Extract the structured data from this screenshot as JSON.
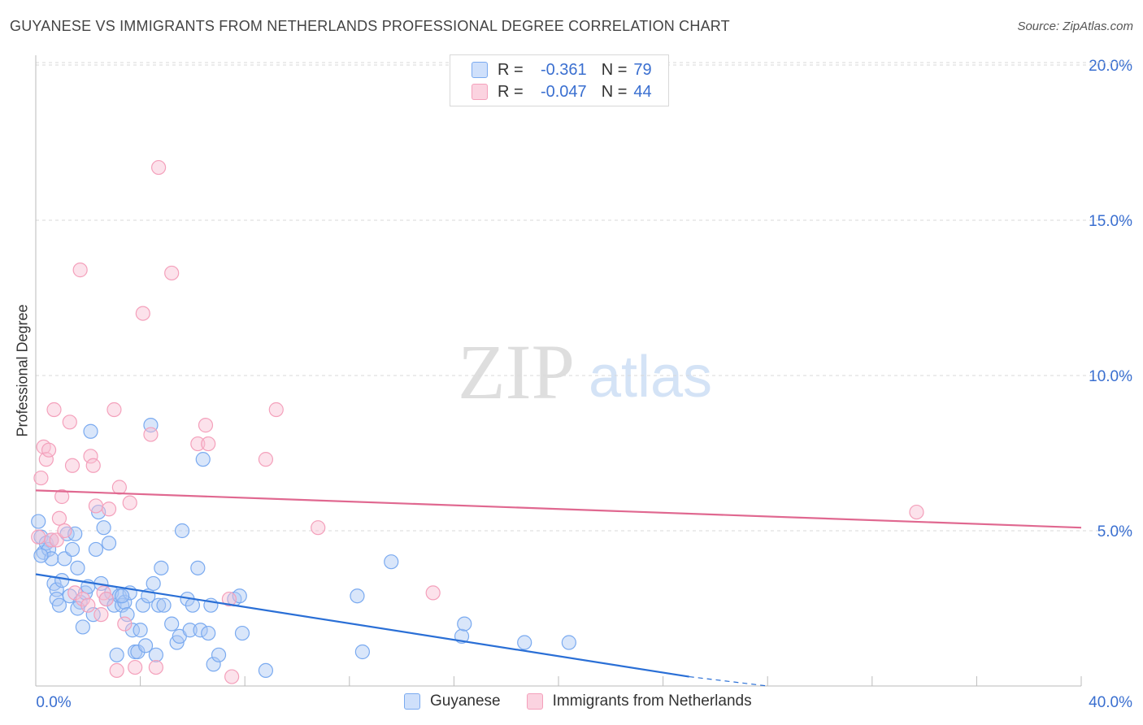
{
  "title": "GUYANESE VS IMMIGRANTS FROM NETHERLANDS PROFESSIONAL DEGREE CORRELATION CHART",
  "source": "Source: ZipAtlas.com",
  "watermark": {
    "zip": "ZIP",
    "atlas": "atlas"
  },
  "legend": {
    "rows": [
      {
        "r_label": "R =",
        "r_value": "-0.361",
        "n_label": "N =",
        "n_value": "79",
        "color": "#7aaaf0"
      },
      {
        "r_label": "R =",
        "r_value": "-0.047",
        "n_label": "N =",
        "n_value": "44",
        "color": "#f4a0bb"
      }
    ]
  },
  "chart_data": {
    "type": "scatter",
    "title": "GUYANESE VS IMMIGRANTS FROM NETHERLANDS PROFESSIONAL DEGREE CORRELATION CHART",
    "xlabel": "",
    "ylabel": "Professional Degree",
    "xlim": [
      0,
      40
    ],
    "ylim": [
      0,
      20
    ],
    "x_tick_labels": [
      "0.0%",
      "40.0%"
    ],
    "y_tick_labels": [
      "5.0%",
      "10.0%",
      "15.0%",
      "20.0%"
    ],
    "y_ticks": [
      5,
      10,
      15,
      20
    ],
    "grid": true,
    "legend_position": "bottom",
    "series": [
      {
        "name": "Guyanese",
        "color": "#7aaaf0",
        "line_color": "#2a6fd6",
        "trend": {
          "x": [
            0,
            25
          ],
          "y": [
            3.6,
            0.3
          ],
          "dashed_to": [
            28,
            0.0
          ]
        },
        "points": [
          [
            0.1,
            5.3
          ],
          [
            0.2,
            4.8
          ],
          [
            0.3,
            4.3
          ],
          [
            0.4,
            4.6
          ],
          [
            0.5,
            4.4
          ],
          [
            0.6,
            4.1
          ],
          [
            0.7,
            3.3
          ],
          [
            0.8,
            3.1
          ],
          [
            0.8,
            2.8
          ],
          [
            0.9,
            2.6
          ],
          [
            1.0,
            3.4
          ],
          [
            1.1,
            4.1
          ],
          [
            1.2,
            4.9
          ],
          [
            1.3,
            2.9
          ],
          [
            1.4,
            4.4
          ],
          [
            1.5,
            4.9
          ],
          [
            1.6,
            3.8
          ],
          [
            1.7,
            2.7
          ],
          [
            1.8,
            1.9
          ],
          [
            1.9,
            3.0
          ],
          [
            2.0,
            3.2
          ],
          [
            2.1,
            8.2
          ],
          [
            2.2,
            2.3
          ],
          [
            2.3,
            4.4
          ],
          [
            2.4,
            5.6
          ],
          [
            2.5,
            3.3
          ],
          [
            2.6,
            5.1
          ],
          [
            2.7,
            2.8
          ],
          [
            2.8,
            4.6
          ],
          [
            2.9,
            3.0
          ],
          [
            3.0,
            2.6
          ],
          [
            3.1,
            1.0
          ],
          [
            3.2,
            2.9
          ],
          [
            3.3,
            2.6
          ],
          [
            3.4,
            2.7
          ],
          [
            3.5,
            2.3
          ],
          [
            3.6,
            3.0
          ],
          [
            3.7,
            1.8
          ],
          [
            3.8,
            1.1
          ],
          [
            3.9,
            1.1
          ],
          [
            4.0,
            1.8
          ],
          [
            4.1,
            2.6
          ],
          [
            4.2,
            1.3
          ],
          [
            4.3,
            2.9
          ],
          [
            4.4,
            8.4
          ],
          [
            4.5,
            3.3
          ],
          [
            4.6,
            1.0
          ],
          [
            4.7,
            2.6
          ],
          [
            4.8,
            3.8
          ],
          [
            4.9,
            2.6
          ],
          [
            5.2,
            2.0
          ],
          [
            5.4,
            1.4
          ],
          [
            5.5,
            1.6
          ],
          [
            5.6,
            5.0
          ],
          [
            5.8,
            2.8
          ],
          [
            5.9,
            1.8
          ],
          [
            6.0,
            2.6
          ],
          [
            6.2,
            3.8
          ],
          [
            6.3,
            1.8
          ],
          [
            6.4,
            7.3
          ],
          [
            6.6,
            1.7
          ],
          [
            6.7,
            2.6
          ],
          [
            6.8,
            0.7
          ],
          [
            7.0,
            1.0
          ],
          [
            7.6,
            2.8
          ],
          [
            7.8,
            2.9
          ],
          [
            7.9,
            1.7
          ],
          [
            8.8,
            0.5
          ],
          [
            12.3,
            2.9
          ],
          [
            12.5,
            1.1
          ],
          [
            13.6,
            4.0
          ],
          [
            16.3,
            1.6
          ],
          [
            16.4,
            2.0
          ],
          [
            18.7,
            1.4
          ],
          [
            20.4,
            1.4
          ],
          [
            0.2,
            4.2
          ],
          [
            1.6,
            2.5
          ],
          [
            3.3,
            2.9
          ],
          [
            0.6,
            4.7
          ]
        ]
      },
      {
        "name": "Immigrants from Netherlands",
        "color": "#f4a0bb",
        "line_color": "#e06890",
        "trend": {
          "x": [
            0,
            40
          ],
          "y": [
            6.3,
            5.1
          ]
        },
        "points": [
          [
            0.1,
            4.8
          ],
          [
            0.2,
            6.7
          ],
          [
            0.3,
            7.7
          ],
          [
            0.4,
            7.3
          ],
          [
            0.5,
            7.6
          ],
          [
            0.6,
            4.7
          ],
          [
            0.7,
            8.9
          ],
          [
            0.8,
            4.7
          ],
          [
            0.9,
            5.4
          ],
          [
            1.0,
            6.1
          ],
          [
            1.1,
            5.0
          ],
          [
            1.3,
            8.5
          ],
          [
            1.4,
            7.1
          ],
          [
            1.5,
            3.0
          ],
          [
            1.7,
            13.4
          ],
          [
            1.8,
            2.8
          ],
          [
            2.0,
            2.6
          ],
          [
            2.1,
            7.4
          ],
          [
            2.2,
            7.1
          ],
          [
            2.3,
            5.8
          ],
          [
            2.5,
            2.3
          ],
          [
            2.6,
            3.0
          ],
          [
            2.7,
            2.8
          ],
          [
            2.8,
            5.7
          ],
          [
            3.0,
            8.9
          ],
          [
            3.1,
            0.5
          ],
          [
            3.2,
            6.4
          ],
          [
            3.4,
            2.0
          ],
          [
            3.6,
            5.9
          ],
          [
            3.8,
            0.6
          ],
          [
            4.1,
            12.0
          ],
          [
            4.4,
            8.1
          ],
          [
            4.6,
            0.6
          ],
          [
            4.7,
            16.7
          ],
          [
            5.2,
            13.3
          ],
          [
            6.2,
            7.8
          ],
          [
            6.5,
            8.4
          ],
          [
            6.6,
            7.8
          ],
          [
            7.4,
            2.8
          ],
          [
            7.5,
            0.3
          ],
          [
            8.8,
            7.3
          ],
          [
            9.2,
            8.9
          ],
          [
            10.8,
            5.1
          ],
          [
            15.2,
            3.0
          ]
        ],
        "outlier": [
          33.7,
          5.6
        ]
      }
    ]
  },
  "bottom_legend": [
    {
      "label": "Guyanese",
      "color": "#7aaaf0"
    },
    {
      "label": "Immigrants from Netherlands",
      "color": "#f4a0bb"
    }
  ]
}
